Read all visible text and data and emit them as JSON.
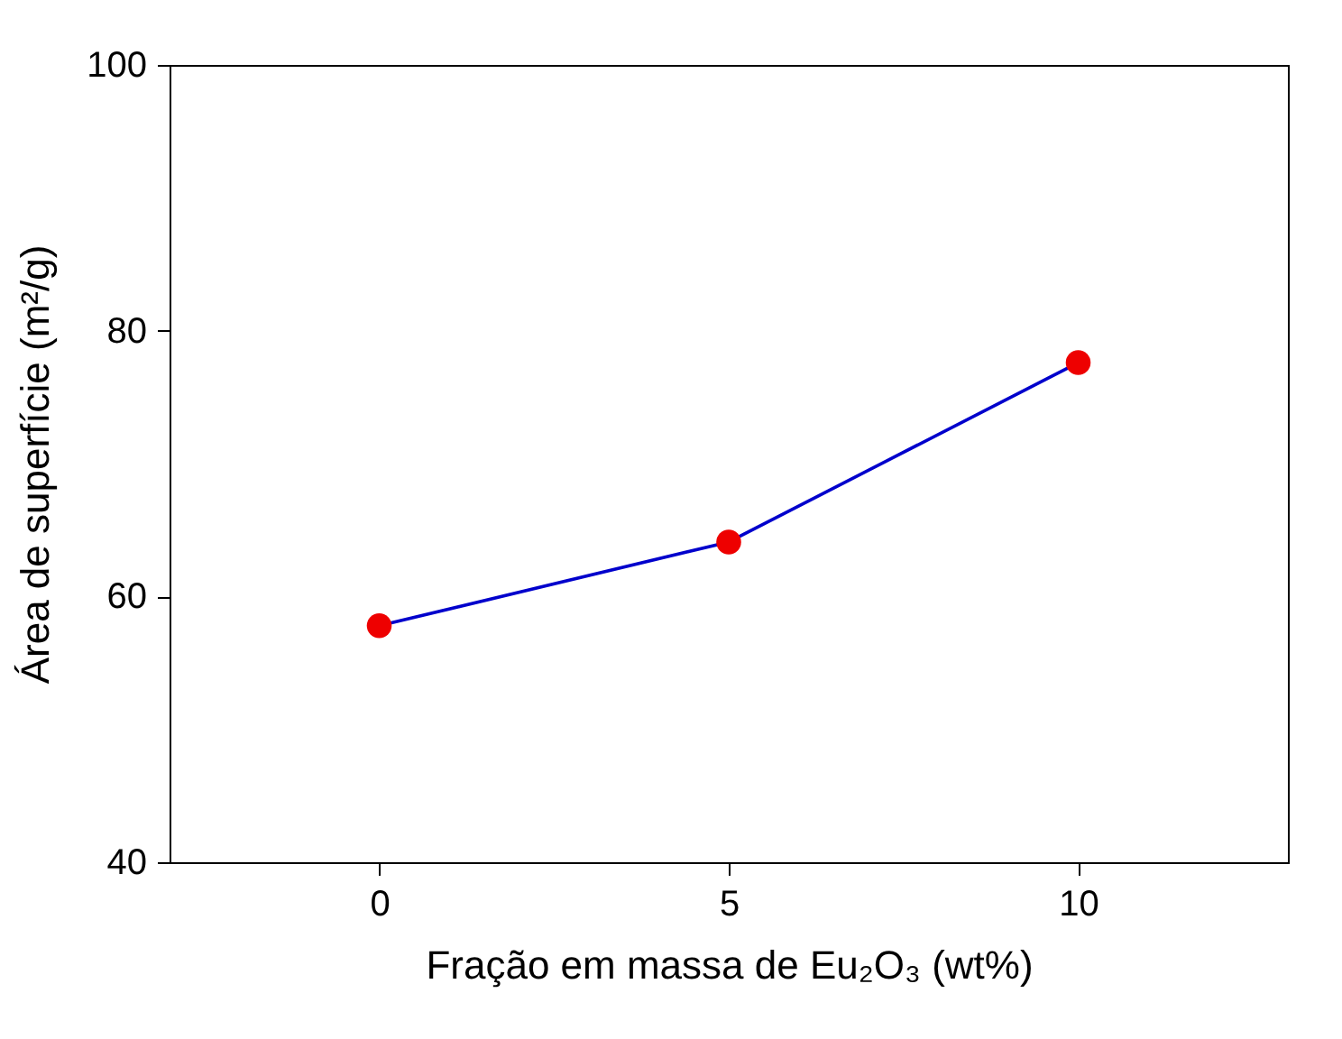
{
  "chart_data": {
    "type": "line",
    "xlabel": "Fração em massa de Eu₂O₃ (wt%)",
    "ylabel": "Área de superfície (m²/g)",
    "x": [
      0,
      5,
      10
    ],
    "series": [
      {
        "color": "#0000cc",
        "values": [
          57.8,
          64.1,
          77.6
        ]
      },
      {
        "type": "scatter",
        "color": "#ee0000",
        "values": [
          57.8,
          64.1,
          77.6
        ]
      }
    ],
    "line_style": "solid",
    "xlim": [
      -3,
      13
    ],
    "xticks": [
      0,
      5,
      10
    ],
    "ylim": [
      40,
      100
    ],
    "yticks": [
      40,
      60,
      80,
      100
    ]
  }
}
